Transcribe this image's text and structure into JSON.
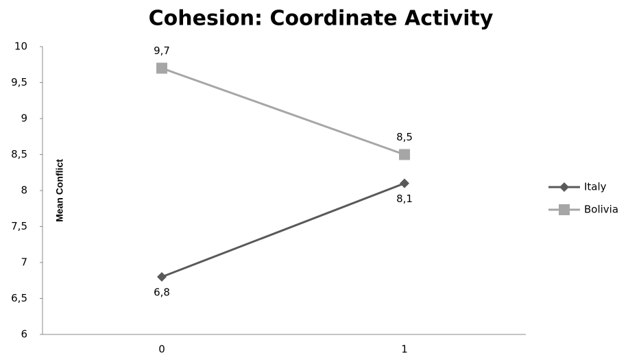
{
  "chart_data": {
    "type": "line",
    "title": "Cohesion: Coordinate Activity",
    "ylabel": "Mean Conflict",
    "categories": [
      "0",
      "1"
    ],
    "series": [
      {
        "name": "Italy",
        "color": "#595959",
        "marker": "diamond",
        "values": [
          6.8,
          8.1
        ],
        "value_labels": [
          "6,8",
          "8,1"
        ]
      },
      {
        "name": "Bolivia",
        "color": "#a6a6a6",
        "marker": "square",
        "values": [
          9.7,
          8.5
        ],
        "value_labels": [
          "9,7",
          "8,5"
        ]
      }
    ],
    "ylim": [
      6,
      10
    ],
    "yticks": [
      6,
      {
        "value": 6.5,
        "label": "6,5"
      },
      7,
      {
        "value": 7.5,
        "label": "7,5"
      },
      8,
      {
        "value": 8.5,
        "label": "8,5"
      },
      9,
      {
        "value": 9.5,
        "label": "9,5"
      },
      10
    ],
    "grid": false,
    "legend": "right"
  }
}
